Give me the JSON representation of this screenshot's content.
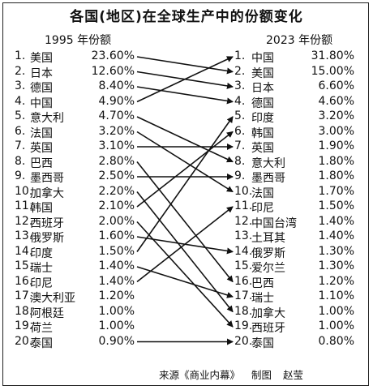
{
  "title": "各国(地区)在全球生产中的份额变化",
  "footer": {
    "source": "来源《商业内幕》",
    "made": "制图",
    "author": "赵莹"
  },
  "colors": {
    "line": "#111111",
    "text": "#111111",
    "border": "#222222"
  },
  "chart_data": {
    "type": "table",
    "left": {
      "year_label": "1995 年份额",
      "rows": [
        {
          "rank": "1.",
          "name": "美国",
          "value": "23.60%"
        },
        {
          "rank": "2.",
          "name": "日本",
          "value": "12.60%"
        },
        {
          "rank": "3.",
          "name": "德国",
          "value": "8.40%"
        },
        {
          "rank": "4.",
          "name": "中国",
          "value": "4.90%"
        },
        {
          "rank": "5.",
          "name": "意大利",
          "value": "4.70%"
        },
        {
          "rank": "6.",
          "name": "法国",
          "value": "3.20%"
        },
        {
          "rank": "7.",
          "name": "英国",
          "value": "3.10%"
        },
        {
          "rank": "8.",
          "name": "巴西",
          "value": "2.80%"
        },
        {
          "rank": "9.",
          "name": "墨西哥",
          "value": "2.50%"
        },
        {
          "rank": "10.",
          "name": "加拿大",
          "value": "2.20%"
        },
        {
          "rank": "11.",
          "name": "韩国",
          "value": "2.10%"
        },
        {
          "rank": "12.",
          "name": "西班牙",
          "value": "2.00%"
        },
        {
          "rank": "13.",
          "name": "俄罗斯",
          "value": "1.60%"
        },
        {
          "rank": "14.",
          "name": "印度",
          "value": "1.50%"
        },
        {
          "rank": "15.",
          "name": "瑞士",
          "value": "1.40%"
        },
        {
          "rank": "16.",
          "name": "印尼",
          "value": "1.40%"
        },
        {
          "rank": "17.",
          "name": "澳大利亚",
          "value": "1.20%"
        },
        {
          "rank": "18.",
          "name": "阿根廷",
          "value": "1.00%"
        },
        {
          "rank": "19.",
          "name": "荷兰",
          "value": "1.00%"
        },
        {
          "rank": "20.",
          "name": "泰国",
          "value": "0.90%"
        }
      ]
    },
    "right": {
      "year_label": "2023 年份额",
      "rows": [
        {
          "rank": "1.",
          "name": "中国",
          "value": "31.80%"
        },
        {
          "rank": "2.",
          "name": "美国",
          "value": "15.00%"
        },
        {
          "rank": "3.",
          "name": "日本",
          "value": "6.60%"
        },
        {
          "rank": "4.",
          "name": "德国",
          "value": "4.60%"
        },
        {
          "rank": "5.",
          "name": "印度",
          "value": "3.20%"
        },
        {
          "rank": "6.",
          "name": "韩国",
          "value": "3.00%"
        },
        {
          "rank": "7.",
          "name": "英国",
          "value": "1.90%"
        },
        {
          "rank": "8.",
          "name": "意大利",
          "value": "1.80%"
        },
        {
          "rank": "9.",
          "name": "墨西哥",
          "value": "1.80%"
        },
        {
          "rank": "10.",
          "name": "法国",
          "value": "1.70%"
        },
        {
          "rank": "11.",
          "name": "印尼",
          "value": "1.50%"
        },
        {
          "rank": "12.",
          "name": "中国台湾",
          "value": "1.40%"
        },
        {
          "rank": "13.",
          "name": "土耳其",
          "value": "1.40%"
        },
        {
          "rank": "14.",
          "name": "俄罗斯",
          "value": "1.30%"
        },
        {
          "rank": "15.",
          "name": "爱尔兰",
          "value": "1.30%"
        },
        {
          "rank": "16.",
          "name": "巴西",
          "value": "1.20%"
        },
        {
          "rank": "17.",
          "name": "瑞士",
          "value": "1.10%"
        },
        {
          "rank": "18.",
          "name": "加拿大",
          "value": "1.00%"
        },
        {
          "rank": "19.",
          "name": "西班牙",
          "value": "1.00%"
        },
        {
          "rank": "20.",
          "name": "泰国",
          "value": "0.80%"
        }
      ]
    },
    "links": [
      {
        "from": 1,
        "to": 2
      },
      {
        "from": 2,
        "to": 3
      },
      {
        "from": 3,
        "to": 4
      },
      {
        "from": 4,
        "to": 1
      },
      {
        "from": 5,
        "to": 8
      },
      {
        "from": 6,
        "to": 10
      },
      {
        "from": 7,
        "to": 7
      },
      {
        "from": 8,
        "to": 16
      },
      {
        "from": 9,
        "to": 9
      },
      {
        "from": 10,
        "to": 18
      },
      {
        "from": 11,
        "to": 6
      },
      {
        "from": 12,
        "to": 19
      },
      {
        "from": 13,
        "to": 14
      },
      {
        "from": 14,
        "to": 5
      },
      {
        "from": 15,
        "to": 17
      },
      {
        "from": 16,
        "to": 11
      },
      {
        "from": 20,
        "to": 20
      }
    ]
  }
}
